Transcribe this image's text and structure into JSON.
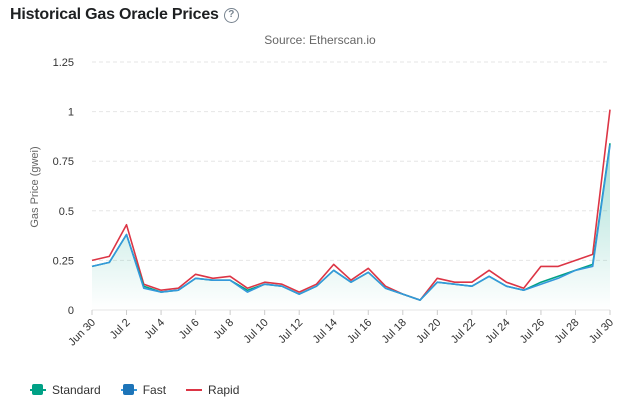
{
  "header": {
    "title": "Historical Gas Oracle Prices"
  },
  "icons": {
    "help": "question-circle-icon"
  },
  "chart_data": {
    "type": "line",
    "title": "Historical Gas Oracle Prices",
    "subtitle": "Source: Etherscan.io",
    "ylabel": "Gas Price (gwei)",
    "ylim": [
      0,
      1.25
    ],
    "yticks": [
      0,
      0.25,
      0.5,
      0.75,
      1,
      1.25
    ],
    "ytick_labels": [
      "0",
      "0.25",
      "0.5",
      "0.75",
      "1",
      "1.25"
    ],
    "x": [
      "Jun 30",
      "Jul 1",
      "Jul 2",
      "Jul 3",
      "Jul 4",
      "Jul 5",
      "Jul 6",
      "Jul 7",
      "Jul 8",
      "Jul 9",
      "Jul 10",
      "Jul 11",
      "Jul 12",
      "Jul 13",
      "Jul 14",
      "Jul 15",
      "Jul 16",
      "Jul 17",
      "Jul 18",
      "Jul 19",
      "Jul 20",
      "Jul 21",
      "Jul 22",
      "Jul 23",
      "Jul 24",
      "Jul 25",
      "Jul 26",
      "Jul 27",
      "Jul 28",
      "Jul 29",
      "Jul 30"
    ],
    "xtick_labels": [
      "Jun 30",
      "Jul 2",
      "Jul 4",
      "Jul 6",
      "Jul 8",
      "Jul 10",
      "Jul 12",
      "Jul 14",
      "Jul 16",
      "Jul 18",
      "Jul 20",
      "Jul 22",
      "Jul 24",
      "Jul 26",
      "Jul 28",
      "Jul 30"
    ],
    "series": [
      {
        "name": "Standard",
        "color": "#00a186",
        "values": [
          0.22,
          0.24,
          0.38,
          0.12,
          0.09,
          0.1,
          0.16,
          0.15,
          0.15,
          0.1,
          0.13,
          0.12,
          0.08,
          0.12,
          0.2,
          0.14,
          0.19,
          0.11,
          0.08,
          0.05,
          0.14,
          0.13,
          0.12,
          0.17,
          0.12,
          0.1,
          0.14,
          0.17,
          0.2,
          0.23,
          0.84
        ]
      },
      {
        "name": "Fast",
        "color": "#3498db",
        "values": [
          0.22,
          0.24,
          0.38,
          0.11,
          0.09,
          0.1,
          0.16,
          0.15,
          0.15,
          0.09,
          0.13,
          0.12,
          0.08,
          0.12,
          0.2,
          0.14,
          0.19,
          0.11,
          0.08,
          0.05,
          0.14,
          0.13,
          0.12,
          0.17,
          0.12,
          0.1,
          0.13,
          0.16,
          0.2,
          0.22,
          0.83
        ]
      },
      {
        "name": "Rapid",
        "color": "#dc3545",
        "values": [
          0.25,
          0.27,
          0.43,
          0.13,
          0.1,
          0.11,
          0.18,
          0.16,
          0.17,
          0.11,
          0.14,
          0.13,
          0.09,
          0.13,
          0.23,
          0.15,
          0.21,
          0.12,
          0.08,
          0.05,
          0.16,
          0.14,
          0.14,
          0.2,
          0.14,
          0.11,
          0.22,
          0.22,
          0.25,
          0.28,
          1.01
        ]
      }
    ],
    "legend": {
      "position": "bottom-left"
    }
  }
}
